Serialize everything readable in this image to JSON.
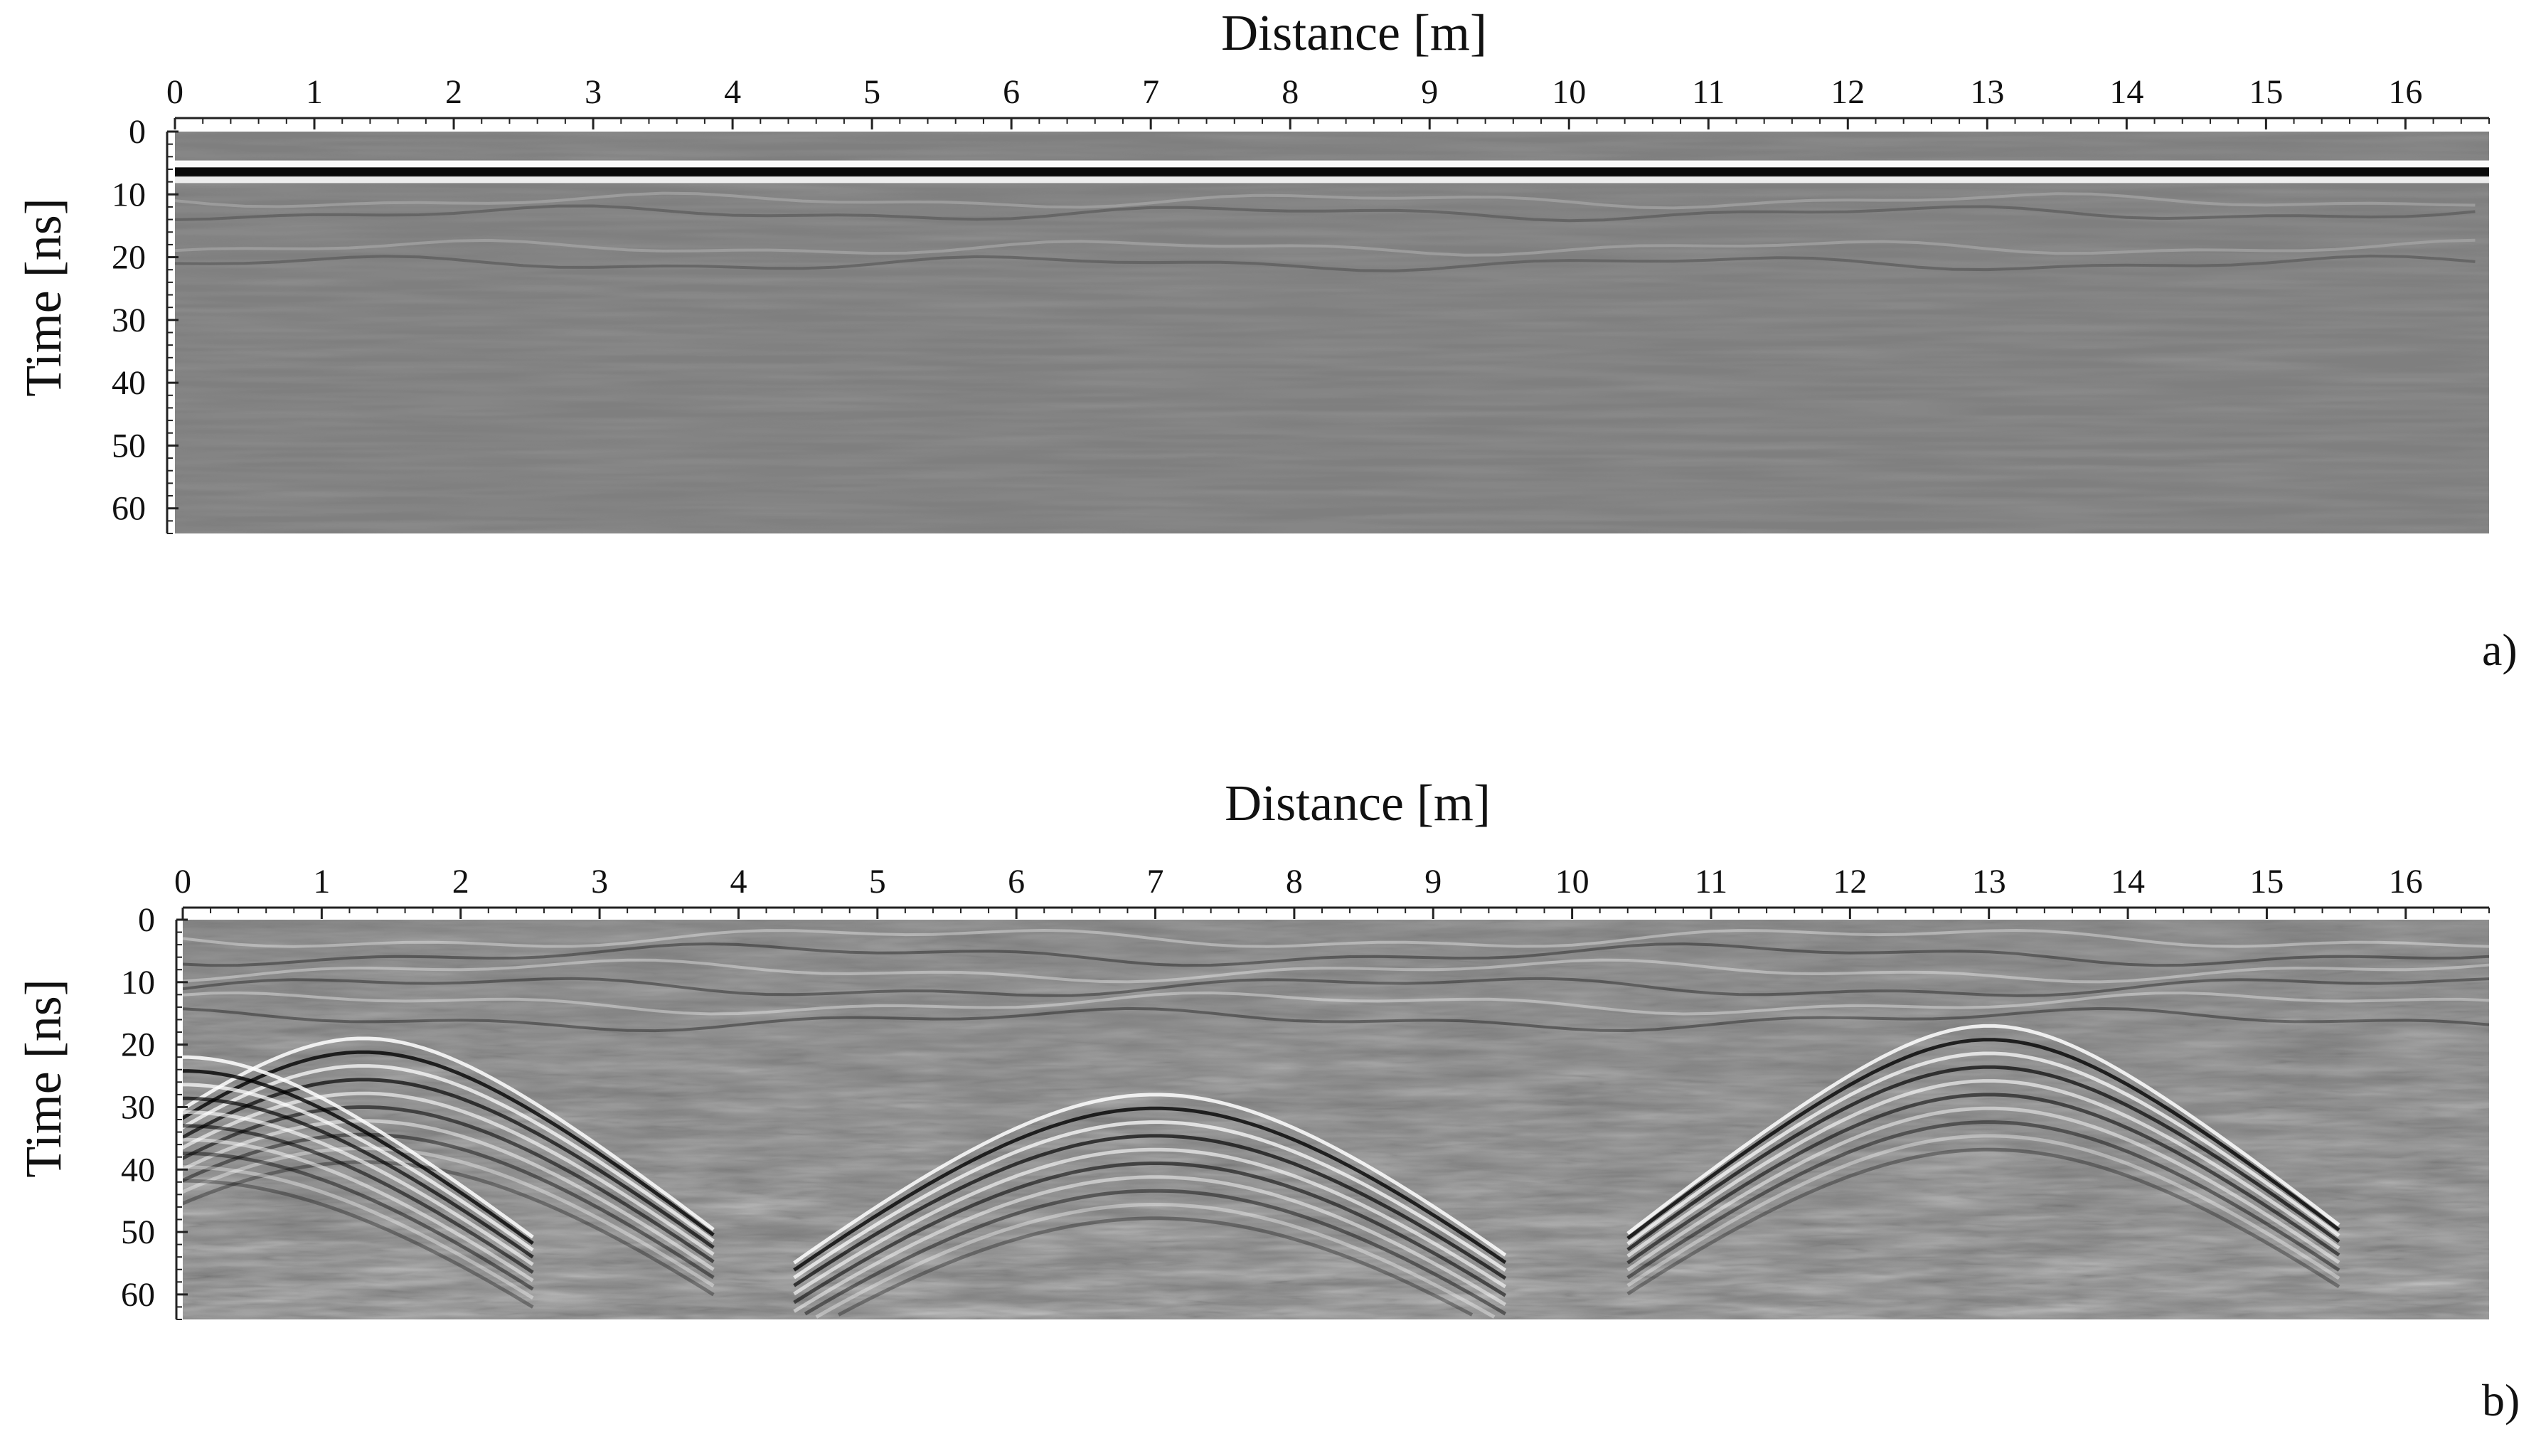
{
  "chart_data": [
    {
      "type": "heatmap",
      "panel_label": "a)",
      "xlabel": "Distance [m]",
      "ylabel": "Time [ns]",
      "xlim": [
        0,
        16.6
      ],
      "ylim": [
        0,
        64
      ],
      "x_ticks": [
        0,
        1,
        2,
        3,
        4,
        5,
        6,
        7,
        8,
        9,
        10,
        11,
        12,
        13,
        14,
        15,
        16
      ],
      "y_ticks": [
        0,
        10,
        20,
        30,
        40,
        50,
        60
      ],
      "colormap": "grayscale radargram",
      "colors": {
        "background": "#7f7f7f",
        "bright": "#ffffff",
        "dark": "#0a0a0a"
      },
      "features": [
        {
          "name": "direct-wave-bright",
          "time_ns": 5.2,
          "strength": 0.95,
          "thickness_ns": 1.2
        },
        {
          "name": "direct-wave-dark",
          "time_ns": 6.4,
          "strength": -1.0,
          "thickness_ns": 1.4
        },
        {
          "name": "direct-wave-bright-2",
          "time_ns": 7.7,
          "strength": 0.85,
          "thickness_ns": 1.0
        }
      ]
    },
    {
      "type": "heatmap",
      "panel_label": "b)",
      "xlabel": "Distance [m]",
      "ylabel": "Time [ns]",
      "xlim": [
        0,
        16.6
      ],
      "ylim": [
        0,
        64
      ],
      "x_ticks": [
        0,
        1,
        2,
        3,
        4,
        5,
        6,
        7,
        8,
        9,
        10,
        11,
        12,
        13,
        14,
        15,
        16
      ],
      "y_ticks": [
        0,
        10,
        20,
        30,
        40,
        50,
        60
      ],
      "colormap": "grayscale radargram",
      "colors": {
        "background": "#808080",
        "bright": "#ffffff",
        "dark": "#000000"
      },
      "hyperbolas": [
        {
          "apex_distance_m": 1.3,
          "apex_time_ns": 19
        },
        {
          "apex_distance_m": 13.0,
          "apex_time_ns": 17
        },
        {
          "apex_distance_m": 7.0,
          "apex_time_ns": 28
        },
        {
          "apex_distance_m": 0.0,
          "apex_time_ns": 22
        }
      ]
    }
  ]
}
